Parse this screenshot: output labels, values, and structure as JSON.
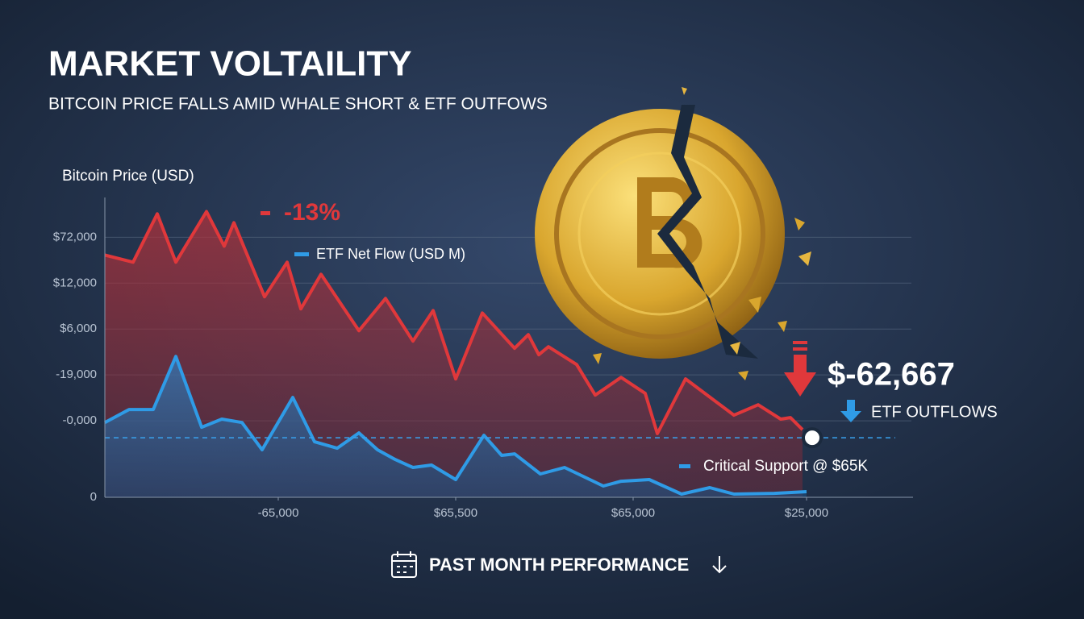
{
  "chart_data": {
    "type": "line",
    "title": "MARKET VOLTAILITY",
    "subtitle": "BITCOIN PRICE FALLS AMID WHALE SHORT & ETF OUTFOWS",
    "y_label": "Bitcoin Price (USD)",
    "change_label": "-13%",
    "price_label": "$-62,667",
    "outflow_label": "ETF OUTFLOWS",
    "support_label": "Critical Support @ $65K",
    "support_level": 38.9,
    "footer": "PAST MONTH PERFORMANCE",
    "xlim": [
      0,
      100
    ],
    "xticks": [
      {
        "value": 21.5,
        "label": "-65,000"
      },
      {
        "value": 43.5,
        "label": "$65,500"
      },
      {
        "value": 65.5,
        "label": "$65,000"
      },
      {
        "value": 87,
        "label": "$25,000"
      }
    ],
    "ylim": [
      0,
      196
    ],
    "yticks": [
      0,
      {
        "value": 50,
        "label": "-0,000"
      },
      {
        "value": 80,
        "label": "-19,000"
      },
      {
        "value": 110,
        "label": "$6,000"
      },
      {
        "value": 140,
        "label": "$12,000"
      },
      {
        "value": 170,
        "label": "$72,000"
      }
    ],
    "grid": true,
    "series": [
      {
        "color": "#e0383b",
        "x": [
          0,
          3.5,
          6.5,
          8.8,
          12.6,
          14.8,
          16,
          19.8,
          22.6,
          24.3,
          26.8,
          31.5,
          34.8,
          38.2,
          40.7,
          43.5,
          46.8,
          50.8,
          52.5,
          53.8,
          55,
          58.5,
          60.8,
          64,
          67,
          68.5,
          72,
          78,
          81,
          83.8,
          85,
          86.5
        ],
        "values": [
          158.4,
          153.7,
          185.3,
          153.7,
          186.8,
          164.2,
          179.5,
          131.1,
          153.7,
          123.2,
          145.8,
          108.9,
          130,
          102.1,
          122.1,
          77.4,
          120.5,
          97.4,
          106.3,
          93.2,
          98.4,
          86.8,
          66.8,
          78.4,
          67.9,
          41.6,
          77.4,
          53.7,
          60.5,
          51.1,
          52.1,
          44.2
        ]
      },
      {
        "name": "ETF Net Flow (USD M)",
        "color": "#2f9be6",
        "x": [
          0,
          3,
          6,
          8.8,
          12,
          14.5,
          17,
          19.5,
          23.3,
          26,
          28.8,
          31.5,
          33.8,
          36,
          38.2,
          40.5,
          43.5,
          47,
          49.2,
          50.8,
          54,
          57,
          61.8,
          64,
          67.5,
          71.5,
          75,
          78,
          83,
          87
        ],
        "values": [
          48.9,
          57.4,
          57.4,
          92.1,
          45.8,
          51.1,
          48.9,
          31.1,
          65.3,
          36.3,
          32.1,
          42.1,
          31.1,
          24.7,
          19.5,
          21.1,
          11.6,
          40.5,
          27.4,
          28.4,
          15.3,
          19.5,
          7.4,
          10.5,
          11.6,
          2.1,
          6.3,
          2.1,
          2.6,
          3.7
        ]
      }
    ]
  }
}
